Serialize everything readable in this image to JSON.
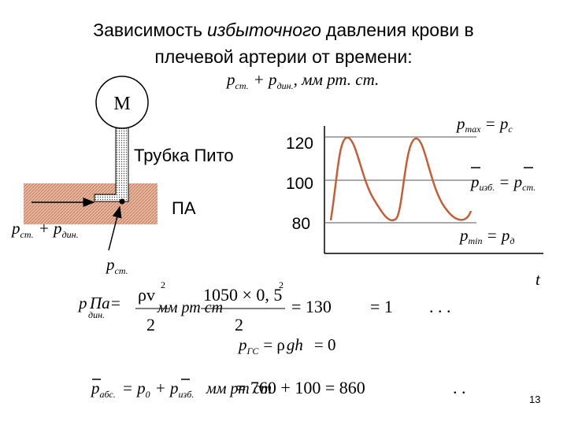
{
  "title": {
    "line1": [
      "Зависимость",
      "избыточного",
      "давления крови в"
    ],
    "line2": "плечевой артерии от времени:"
  },
  "graph": {
    "axis_label": {
      "p": "p",
      "sub1": "ст.",
      "plus": "+ p",
      "sub2": "дин.",
      "unit": ", мм  рт. ст."
    },
    "ticks": [
      "120",
      "100",
      "80"
    ],
    "x_label": "t",
    "pmax": {
      "p": "p",
      "sub": "max",
      "eq": "= p",
      "sub2": "с"
    },
    "pizb": {
      "p": "p",
      "sub": "изб.",
      "eq": "= p",
      "sub2": "ст."
    },
    "pmin": {
      "p": "p",
      "sub": "min",
      "eq": "= p",
      "sub2": "д"
    }
  },
  "diagram": {
    "manometer": "М",
    "tube": "Трубка Пито",
    "artery": "ПА",
    "left": {
      "p": "p",
      "sub1": "ст.",
      "plus": "+ p",
      "sub2": "дин."
    },
    "bottom": {
      "p": "p",
      "sub": "ст."
    }
  },
  "formulas": {
    "dyn": {
      "p": "p",
      "sub": "дин.",
      "pa": "Па=",
      "num1": "ρv",
      "sup1": "2",
      "den1": "2",
      "unit": "мм рт ст",
      "num2": "1050 × 0, 5",
      "sup2": "2",
      "den2": "2",
      "r1": "= 130",
      "r2": "= 1",
      "dots": ".      .      ."
    },
    "gs": {
      "p": "p",
      "sub": "ГС",
      "eq": "= ρ",
      "gh": "gh",
      "r": "= 0"
    },
    "abs": {
      "p": "p",
      "sub": "абс.",
      "eq": "= p",
      "sub0": "0",
      "plus": "+ p",
      "sub2": "изб.",
      "unit": "мм рт ст",
      "r": "= 760 + 100 = 860",
      "dots": ".     ."
    }
  },
  "page_number": "13"
}
